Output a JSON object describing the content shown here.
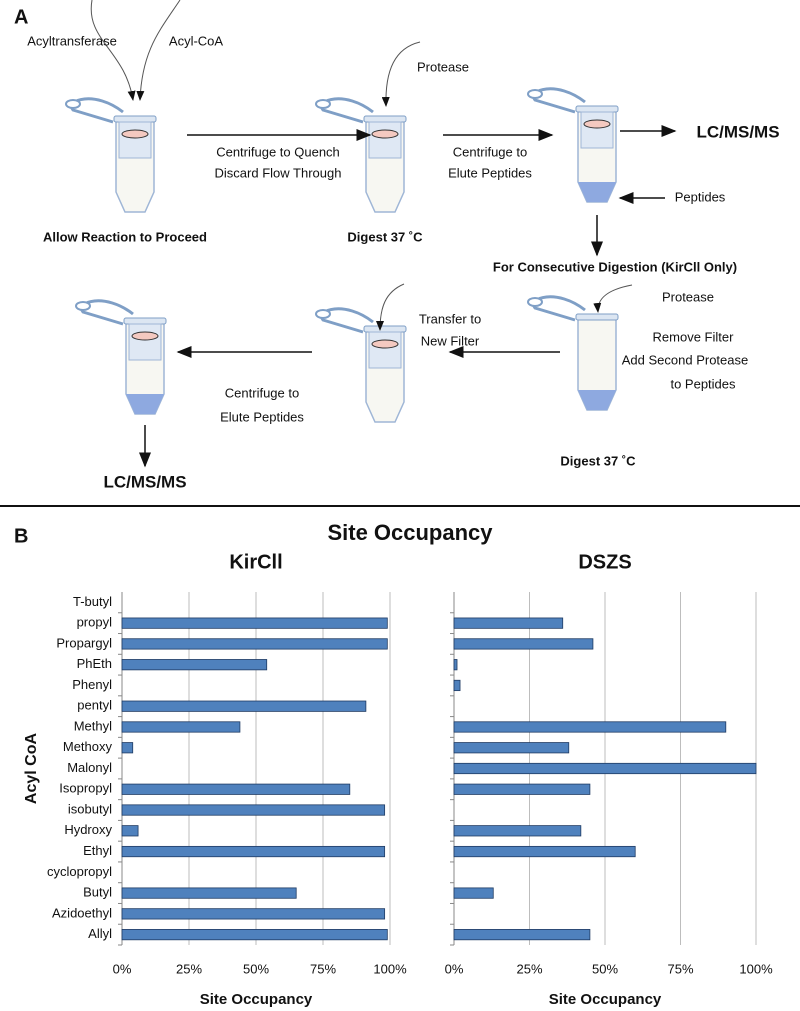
{
  "panel_a": {
    "label": "A",
    "texts": [
      "Acyltransferase",
      "Acyl-CoA",
      "Allow Reaction to Proceed",
      "Centrifuge to Quench",
      "Discard Flow Through",
      "Protease",
      "Digest 37 ˚C",
      "Centrifuge to",
      "Elute Peptides",
      "LC/MS/MS",
      "Peptides",
      "For Consecutive Digestion (KirCll Only)",
      "Protease",
      "Remove Filter",
      "Add Second Protease",
      "to Peptides",
      "Transfer to",
      "New Filter",
      "Digest 37 ˚C",
      "Centrifuge to",
      "Elute Peptides",
      "LC/MS/MS"
    ]
  },
  "panel_b": {
    "label": "B",
    "title": "Site Occupancy"
  },
  "chart_data": [
    {
      "type": "bar",
      "orientation": "horizontal",
      "title": "KirCll",
      "xlabel": "Site Occupancy",
      "ylabel": "Acyl CoA",
      "color": "#4f81bd",
      "grid": true,
      "categories": [
        "T-butyl",
        "propyl",
        "Propargyl",
        "PhEth",
        "Phenyl",
        "pentyl",
        "Methyl",
        "Methoxy",
        "Malonyl",
        "Isopropyl",
        "isobutyl",
        "Hydroxy",
        "Ethyl",
        "cyclopropyl",
        "Butyl",
        "Azidoethyl",
        "Allyl"
      ],
      "values": [
        0,
        99,
        99,
        54,
        0,
        91,
        44,
        4,
        0,
        85,
        98,
        6,
        98,
        0,
        65,
        98,
        99
      ],
      "xlim": [
        0,
        100
      ],
      "xticks": [
        {
          "value": 0,
          "label": "0%"
        },
        {
          "value": 25,
          "label": "25%"
        },
        {
          "value": 50,
          "label": "50%"
        },
        {
          "value": 75,
          "label": "75%"
        },
        {
          "value": 100,
          "label": "100%"
        }
      ]
    },
    {
      "type": "bar",
      "orientation": "horizontal",
      "title": "DSZS",
      "xlabel": "Site Occupancy",
      "color": "#4f81bd",
      "grid": true,
      "values": [
        0,
        36,
        46,
        1,
        2,
        0,
        90,
        38,
        100,
        45,
        0,
        42,
        60,
        0,
        13,
        0,
        45
      ],
      "xlim": [
        0,
        100
      ],
      "xticks": [
        {
          "value": 0,
          "label": "0%"
        },
        {
          "value": 25,
          "label": "25%"
        },
        {
          "value": 50,
          "label": "50%"
        },
        {
          "value": 75,
          "label": "75%"
        },
        {
          "value": 100,
          "label": "100%"
        }
      ]
    }
  ]
}
